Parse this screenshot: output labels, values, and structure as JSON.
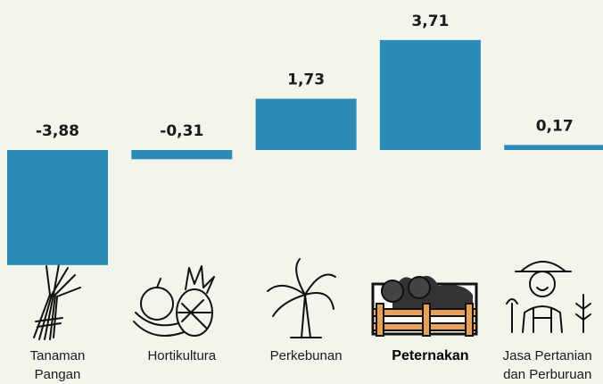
{
  "chart_data": {
    "type": "bar",
    "categories": [
      [
        "Tanaman",
        "Pangan"
      ],
      [
        "Hortikultura"
      ],
      [
        "Perkebunan"
      ],
      [
        "Peternakan"
      ],
      [
        "Jasa Pertanian",
        "dan Perburuan"
      ]
    ],
    "values": [
      -3.88,
      -0.31,
      1.73,
      3.71,
      0.17
    ],
    "value_labels": [
      "-3,88",
      "-0,31",
      "1,73",
      "3,71",
      "0,17"
    ],
    "color": "#2b8ab6",
    "highlight": 3
  }
}
